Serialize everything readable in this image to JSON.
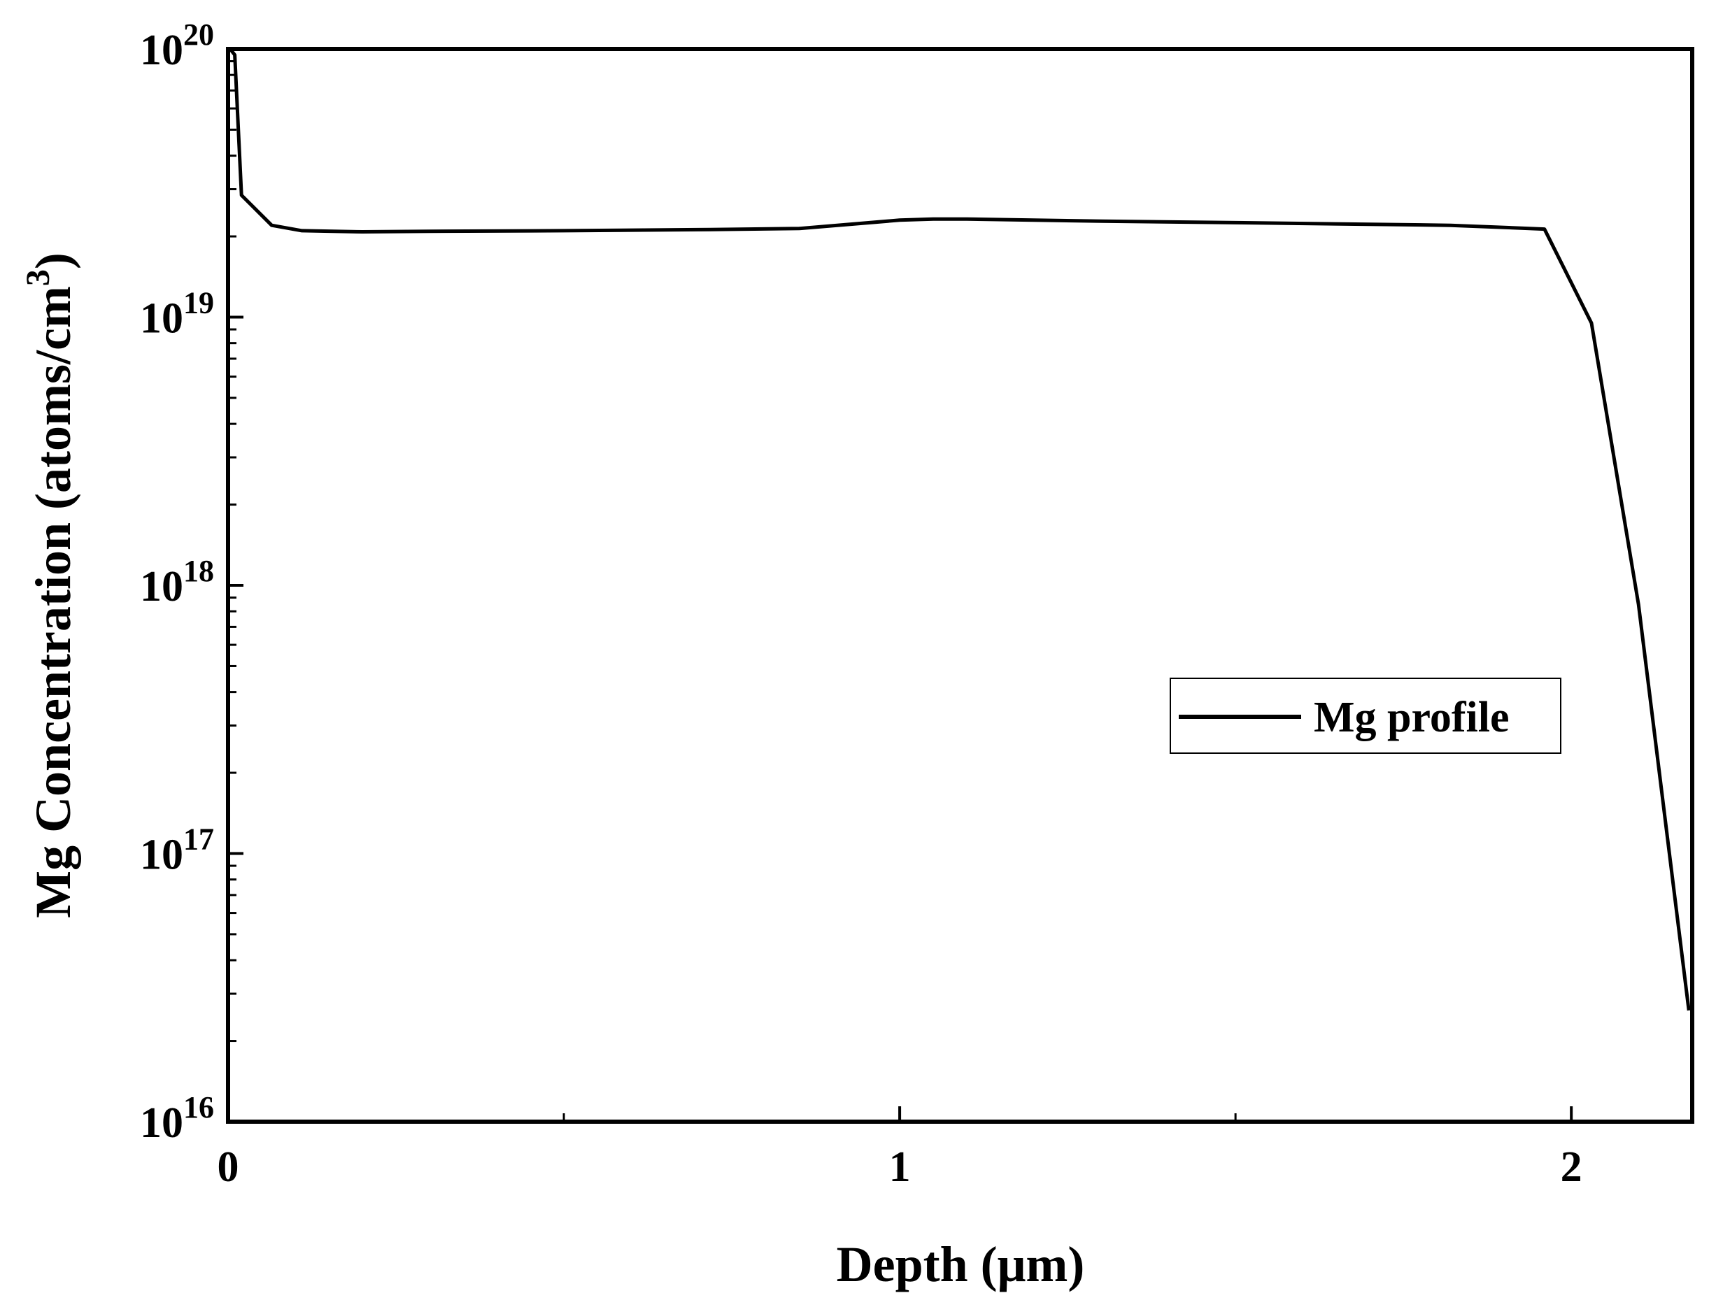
{
  "chart_data": {
    "type": "line",
    "title": "",
    "xlabel": "Depth (μm)",
    "ylabel_main": "Mg Concentration (atoms/cm",
    "ylabel_sup": "3",
    "ylabel_tail": ")",
    "xlim": [
      0,
      2.18
    ],
    "ylim": [
      1e+16,
      1e+20
    ],
    "yscale": "log",
    "grid": false,
    "x_ticks": [
      0,
      1,
      2
    ],
    "x_minor_ticks": [
      0.5,
      1.5
    ],
    "y_ticks": [
      {
        "base": "10",
        "exp": "16",
        "value": 1e+16
      },
      {
        "base": "10",
        "exp": "17",
        "value": 1e+17
      },
      {
        "base": "10",
        "exp": "18",
        "value": 1e+18
      },
      {
        "base": "10",
        "exp": "19",
        "value": 1e+19
      },
      {
        "base": "10",
        "exp": "20",
        "value": 1e+20
      }
    ],
    "legend": {
      "position": "center-right",
      "entries": [
        "Mg profile"
      ]
    },
    "series": [
      {
        "name": "Mg profile",
        "color": "#000000",
        "x": [
          0.003,
          0.01,
          0.02,
          0.065,
          0.11,
          0.2,
          0.3,
          0.5,
          0.7,
          0.85,
          1.0,
          1.05,
          1.1,
          1.3,
          1.5,
          1.7,
          1.82,
          1.96,
          2.03,
          2.1,
          2.175
        ],
        "y": [
          1e+20,
          9.5e+19,
          2.85e+19,
          2.2e+19,
          2.1e+19,
          2.08e+19,
          2.09e+19,
          2.1e+19,
          2.12e+19,
          2.14e+19,
          2.3e+19,
          2.32e+19,
          2.32e+19,
          2.28e+19,
          2.25e+19,
          2.22e+19,
          2.2e+19,
          2.13e+19,
          9.5e+18,
          8.5e+17,
          2.6e+16
        ]
      }
    ]
  }
}
